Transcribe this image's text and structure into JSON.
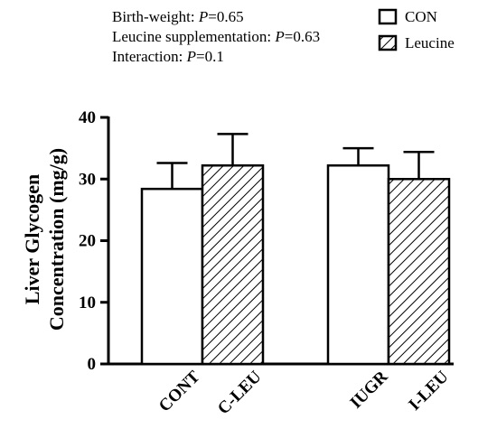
{
  "chart_data": {
    "type": "bar",
    "categories": [
      "CONT",
      "C-LEU",
      "IUGR",
      "I-LEU"
    ],
    "groups": [
      {
        "name": "CON",
        "categories": [
          "CONT",
          "IUGR"
        ]
      },
      {
        "name": "Leucine",
        "categories": [
          "C-LEU",
          "I-LEU"
        ]
      }
    ],
    "series": [
      {
        "name": "CON",
        "values": [
          28.4,
          null,
          32.2,
          null
        ],
        "errors": [
          4.2,
          null,
          2.8,
          null
        ]
      },
      {
        "name": "Leucine",
        "values": [
          null,
          32.2,
          null,
          30.0
        ],
        "errors": [
          null,
          5.1,
          null,
          4.4
        ]
      }
    ],
    "ylabel_line1": "Liver Glycogen",
    "ylabel_line2": "Concentration (mg/g)",
    "xlabel": "",
    "ylim": [
      0,
      40
    ],
    "yticks": [
      0,
      10,
      20,
      30,
      40
    ],
    "legend": [
      {
        "label": "CON",
        "pattern": "solid"
      },
      {
        "label": "Leucine",
        "pattern": "hatched"
      }
    ],
    "annotations": [
      {
        "prefix": "Birth-weight: ",
        "p": "P",
        "suffix": "=0.65"
      },
      {
        "prefix": "Leucine supplementation: ",
        "p": "P",
        "suffix": "=0.63"
      },
      {
        "prefix": "Interaction: ",
        "p": "P",
        "suffix": "=0.1"
      }
    ]
  },
  "colors": {
    "axis": "#000000",
    "bar_fill": "#ffffff",
    "hatch": "#000000"
  }
}
